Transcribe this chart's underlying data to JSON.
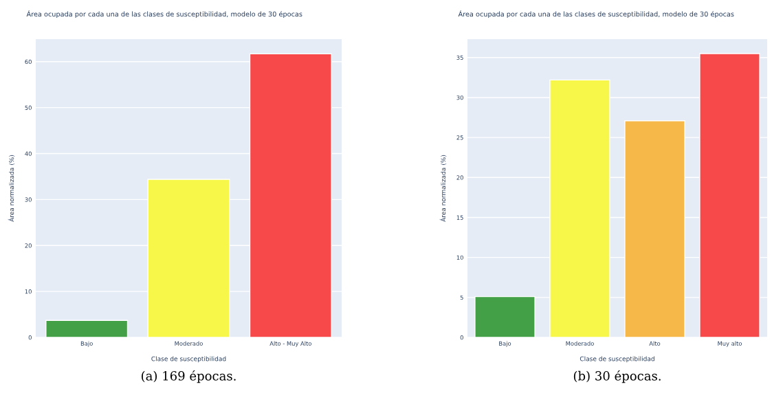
{
  "chart_data": [
    {
      "type": "bar",
      "title": "Área ocupada por cada una de las clases de susceptibilidad, modelo de 30 épocas",
      "xlabel": "Clase de susceptibilidad",
      "ylabel": "Área normalizada (%)",
      "categories": [
        "Bajo",
        "Moderado",
        "Alto - Muy Alto"
      ],
      "values": [
        3.7,
        34.4,
        61.7
      ],
      "colors": [
        "#43a047",
        "#f7f74a",
        "#f7484a"
      ],
      "ylim": [
        0,
        64.9
      ],
      "yticks": [
        0,
        10,
        20,
        30,
        40,
        50,
        60
      ],
      "grid": "y",
      "annotations": [
        "(a) 169 épocas."
      ]
    },
    {
      "type": "bar",
      "title": "Área ocupada por cada una de las clases de susceptibilidad, modelo de 30 épocas",
      "xlabel": "Clase de susceptibilidad",
      "ylabel": "Área normalizada (%)",
      "categories": [
        "Bajo",
        "Moderado",
        "Alto",
        "Muy alto"
      ],
      "values": [
        5.1,
        32.2,
        27.1,
        35.5
      ],
      "colors": [
        "#43a047",
        "#f7f74a",
        "#f7b84a",
        "#f7484a"
      ],
      "ylim": [
        0,
        37.3
      ],
      "yticks": [
        0,
        5,
        10,
        15,
        20,
        25,
        30,
        35
      ],
      "grid": "y",
      "annotations": [
        "(b) 30 épocas."
      ]
    }
  ]
}
